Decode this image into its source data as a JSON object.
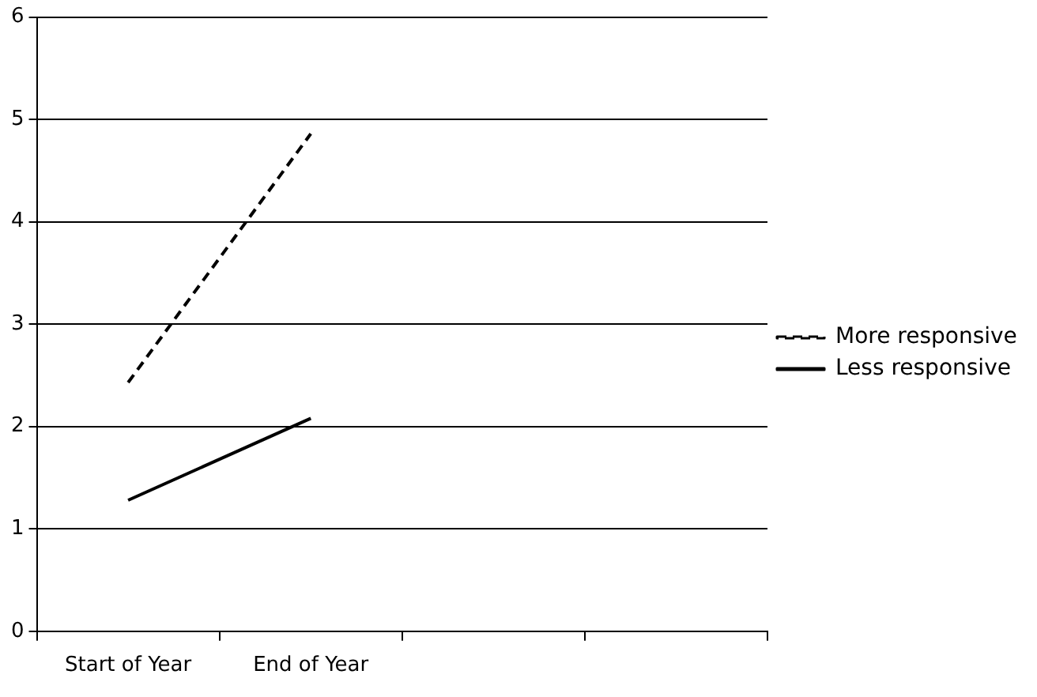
{
  "chart_data": {
    "type": "line",
    "categories": [
      "Start of Year",
      "End of Year",
      null,
      null
    ],
    "series": [
      {
        "name": "More responsive",
        "color": "#000000",
        "line_style": "dashed",
        "values": [
          2.43,
          4.86,
          null,
          null
        ]
      },
      {
        "name": "Less responsive",
        "color": "#000000",
        "line_style": "solid",
        "values": [
          1.28,
          2.08,
          null,
          null
        ]
      }
    ],
    "ylim": [
      0,
      6
    ],
    "yticks": [
      0,
      1,
      2,
      3,
      4,
      5,
      6
    ],
    "grid": "y",
    "legend": "right",
    "marker": "none"
  }
}
